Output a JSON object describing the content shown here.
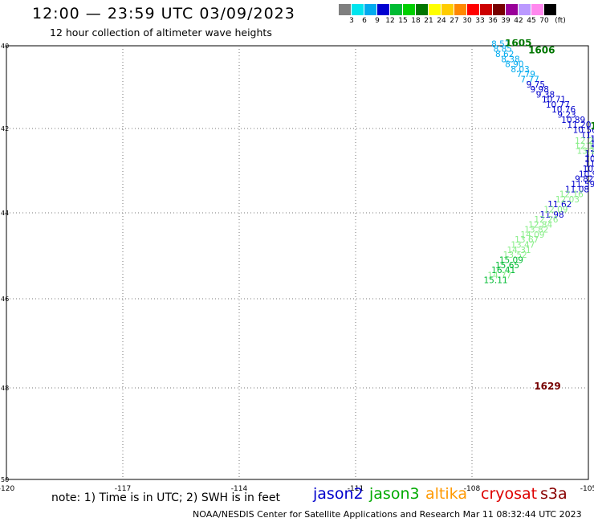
{
  "title": "12:00 — 23:59 UTC 03/09/2023",
  "subtitle": "12 hour collection of altimeter wave heights",
  "legend": {
    "unit": "(ft)",
    "bins": [
      {
        "label": "3",
        "color": "#7f7f7f"
      },
      {
        "label": "6",
        "color": "#00e5ee"
      },
      {
        "label": "9",
        "color": "#00aaee"
      },
      {
        "label": "12",
        "color": "#0000d0"
      },
      {
        "label": "15",
        "color": "#00bb33"
      },
      {
        "label": "18",
        "color": "#00d000"
      },
      {
        "label": "21",
        "color": "#007700"
      },
      {
        "label": "24",
        "color": "#ffff00"
      },
      {
        "label": "27",
        "color": "#ffcc00"
      },
      {
        "label": "30",
        "color": "#ff8800"
      },
      {
        "label": "33",
        "color": "#ff0000"
      },
      {
        "label": "36",
        "color": "#cc0000"
      },
      {
        "label": "39",
        "color": "#770000"
      },
      {
        "label": "42",
        "color": "#990099"
      },
      {
        "label": "45",
        "color": "#bb99ff"
      },
      {
        "label": "70",
        "color": "#ff88ee"
      },
      {
        "label": "",
        "color": "#000000"
      }
    ]
  },
  "chart_data": {
    "type": "scatter",
    "xlim": [
      -120,
      -105
    ],
    "ylim": [
      20,
      40
    ],
    "x_ticks": [
      "-120",
      "-117",
      "-114",
      "-111",
      "-108",
      "-105"
    ],
    "y_ticks": [
      "40",
      "42",
      "44",
      "46",
      "48",
      "50"
    ],
    "grid": true,
    "time_labels": [
      {
        "label": "1605",
        "lon": -107.15,
        "lat": 39.98,
        "color": "#007700"
      },
      {
        "label": "1606",
        "lon": -106.55,
        "lat": 39.65,
        "color": "#007700"
      },
      {
        "label": "160",
        "lon": -104.95,
        "lat": 36.15,
        "color": "#007700"
      },
      {
        "label": "1629",
        "lon": -106.4,
        "lat": 24.15,
        "color": "#770000"
      }
    ],
    "series": [
      {
        "name": "jason2",
        "color": "#0000cc",
        "points": [
          {
            "lon": -107.5,
            "lat": 39.95,
            "value": "8.57",
            "color": "#00aaee"
          },
          {
            "lon": -107.45,
            "lat": 39.72,
            "value": "8.85",
            "color": "#00aaee"
          },
          {
            "lon": -107.4,
            "lat": 39.48,
            "value": "8.62",
            "color": "#00aaee"
          },
          {
            "lon": -107.25,
            "lat": 39.25,
            "value": "8.38",
            "color": "#00aaee"
          },
          {
            "lon": -107.15,
            "lat": 39.02,
            "value": "8.90",
            "color": "#00aaee"
          },
          {
            "lon": -107.0,
            "lat": 38.78,
            "value": "8.03",
            "color": "#00aaee"
          },
          {
            "lon": -106.85,
            "lat": 38.55,
            "value": "7.79",
            "color": "#00aaee"
          },
          {
            "lon": -106.75,
            "lat": 38.32,
            "value": "7.77",
            "color": "#00aaee"
          },
          {
            "lon": -106.6,
            "lat": 38.08,
            "value": "9.75",
            "color": "#0000cc"
          },
          {
            "lon": -106.5,
            "lat": 37.85,
            "value": "9.98",
            "color": "#0000cc"
          },
          {
            "lon": -106.35,
            "lat": 37.62,
            "value": "9.38",
            "color": "#0000cc"
          },
          {
            "lon": -106.2,
            "lat": 37.38,
            "value": "10.71",
            "color": "#0000cc"
          },
          {
            "lon": -106.1,
            "lat": 37.15,
            "value": "10.77",
            "color": "#0000cc"
          },
          {
            "lon": -105.95,
            "lat": 36.92,
            "value": "10.76",
            "color": "#0000cc"
          },
          {
            "lon": -105.8,
            "lat": 36.68,
            "value": "9.23",
            "color": "#0000cc"
          },
          {
            "lon": -105.7,
            "lat": 36.45,
            "value": "10.89",
            "color": "#0000cc"
          },
          {
            "lon": -105.55,
            "lat": 36.22,
            "value": "11.20",
            "color": "#0000cc"
          },
          {
            "lon": -105.4,
            "lat": 35.98,
            "value": "10.56",
            "color": "#0000cc"
          },
          {
            "lon": -105.2,
            "lat": 35.75,
            "value": "11.04",
            "color": "#0000cc"
          },
          {
            "lon": -104.95,
            "lat": 35.58,
            "value": "11",
            "color": "#0000cc"
          },
          {
            "lon": -104.95,
            "lat": 35.35,
            "value": "11.",
            "color": "#0000cc"
          },
          {
            "lon": -104.95,
            "lat": 35.12,
            "value": "11.8",
            "color": "#0000cc"
          },
          {
            "lon": -105.1,
            "lat": 34.88,
            "value": "11.5",
            "color": "#0000cc"
          },
          {
            "lon": -105.1,
            "lat": 34.65,
            "value": "10.23",
            "color": "#0000cc"
          },
          {
            "lon": -105.1,
            "lat": 34.42,
            "value": "11.38",
            "color": "#0000cc"
          },
          {
            "lon": -105.15,
            "lat": 34.18,
            "value": "10.26",
            "color": "#0000cc"
          },
          {
            "lon": -105.25,
            "lat": 33.95,
            "value": "10.91",
            "color": "#0000cc"
          },
          {
            "lon": -105.35,
            "lat": 33.72,
            "value": "9.82",
            "color": "#0000cc"
          },
          {
            "lon": -105.45,
            "lat": 33.48,
            "value": "11.59",
            "color": "#0000cc"
          },
          {
            "lon": -105.6,
            "lat": 33.25,
            "value": "11.08",
            "color": "#0000cc"
          },
          {
            "lon": -106.05,
            "lat": 32.55,
            "value": "11.62",
            "color": "#0000cc"
          },
          {
            "lon": -106.25,
            "lat": 32.08,
            "value": "11.98",
            "color": "#0000cc"
          }
        ]
      },
      {
        "name": "jason3",
        "color": "#00aa00",
        "points": [
          {
            "lon": -105.35,
            "lat": 35.48,
            "value": "12.20",
            "color": "#88ee88"
          },
          {
            "lon": -105.35,
            "lat": 35.25,
            "value": "12.11",
            "color": "#88ee88"
          },
          {
            "lon": -105.3,
            "lat": 35.02,
            "value": "13.1",
            "color": "#88ee88"
          },
          {
            "lon": -105.75,
            "lat": 33.02,
            "value": "12.16",
            "color": "#88ee88"
          },
          {
            "lon": -105.85,
            "lat": 32.78,
            "value": "12.03",
            "color": "#88ee88"
          },
          {
            "lon": -106.15,
            "lat": 32.32,
            "value": "12.09",
            "color": "#88ee88"
          },
          {
            "lon": -106.4,
            "lat": 31.85,
            "value": "12.26",
            "color": "#88ee88"
          },
          {
            "lon": -106.55,
            "lat": 31.62,
            "value": "12.84",
            "color": "#88ee88"
          },
          {
            "lon": -106.65,
            "lat": 31.38,
            "value": "13.82",
            "color": "#88ee88"
          },
          {
            "lon": -106.75,
            "lat": 31.15,
            "value": "14.09",
            "color": "#88ee88"
          },
          {
            "lon": -106.9,
            "lat": 30.92,
            "value": "13.67",
            "color": "#88ee88"
          },
          {
            "lon": -107.0,
            "lat": 30.68,
            "value": "13.47",
            "color": "#88ee88"
          },
          {
            "lon": -107.1,
            "lat": 30.45,
            "value": "14.31",
            "color": "#88ee88"
          },
          {
            "lon": -107.2,
            "lat": 30.22,
            "value": "13.52",
            "color": "#88ee88"
          },
          {
            "lon": -107.3,
            "lat": 29.98,
            "value": "15.09",
            "color": "#00bb33"
          },
          {
            "lon": -107.4,
            "lat": 29.75,
            "value": "15.65",
            "color": "#00bb33"
          },
          {
            "lon": -107.5,
            "lat": 29.52,
            "value": "16.41",
            "color": "#00bb33"
          },
          {
            "lon": -107.6,
            "lat": 29.28,
            "value": "14.77",
            "color": "#88ee88"
          },
          {
            "lon": -107.7,
            "lat": 29.05,
            "value": "15.11",
            "color": "#00bb33"
          }
        ]
      },
      {
        "name": "altika",
        "color": "#ff9900",
        "points": []
      },
      {
        "name": "cryosat",
        "color": "#dd0000",
        "points": []
      },
      {
        "name": "s3a",
        "color": "#880000",
        "points": []
      }
    ]
  },
  "note": "note: 1) Time is in UTC; 2) SWH is in feet",
  "footer": "NOAA/NESDIS Center for Satellite Applications and Research    Mar 11 08:32:44 UTC 2023"
}
